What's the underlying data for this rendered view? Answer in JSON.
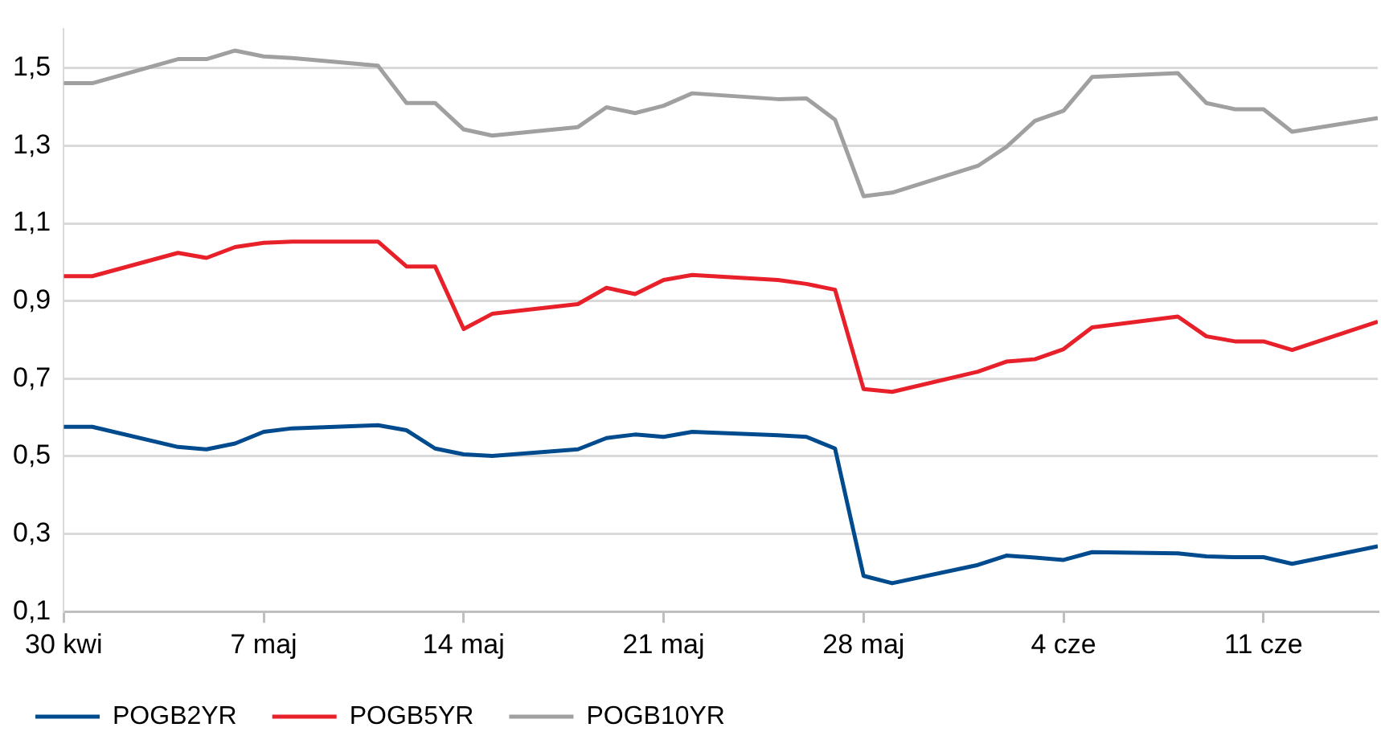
{
  "chart_data": {
    "type": "line",
    "x": [
      "--04-30",
      "--05-01",
      "--05-04",
      "--05-05",
      "--05-06",
      "--05-07",
      "--05-08",
      "--05-11",
      "--05-12",
      "--05-13",
      "--05-14",
      "--05-15",
      "--05-18",
      "--05-19",
      "--05-20",
      "--05-21",
      "--05-22",
      "--05-25",
      "--05-26",
      "--05-27",
      "--05-28",
      "--05-29",
      "--06-01",
      "--06-02",
      "--06-03",
      "--06-04",
      "--06-05",
      "--06-08",
      "--06-09",
      "--06-10",
      "--06-11",
      "--06-12",
      "--06-15"
    ],
    "series": [
      {
        "name": "POGB2YR",
        "color": "#004b8d",
        "values": [
          0.576,
          0.576,
          0.524,
          0.518,
          0.533,
          0.563,
          0.572,
          0.58,
          0.567,
          0.52,
          0.505,
          0.501,
          0.518,
          0.547,
          0.556,
          0.55,
          0.563,
          0.554,
          0.55,
          0.52,
          0.192,
          0.173,
          0.22,
          0.244,
          0.239,
          0.233,
          0.253,
          0.25,
          0.242,
          0.24,
          0.24,
          0.223,
          0.268
        ]
      },
      {
        "name": "POGB5YR",
        "color": "#e8202a",
        "values": [
          0.964,
          0.964,
          1.024,
          1.011,
          1.039,
          1.05,
          1.053,
          1.053,
          0.989,
          0.989,
          0.828,
          0.867,
          0.892,
          0.934,
          0.918,
          0.954,
          0.967,
          0.954,
          0.944,
          0.929,
          0.673,
          0.666,
          0.718,
          0.744,
          0.75,
          0.776,
          0.832,
          0.86,
          0.809,
          0.796,
          0.796,
          0.774,
          0.847
        ]
      },
      {
        "name": "POGB10YR",
        "color": "#a0a0a0",
        "values": [
          1.461,
          1.461,
          1.523,
          1.523,
          1.545,
          1.53,
          1.526,
          1.506,
          1.41,
          1.41,
          1.342,
          1.326,
          1.348,
          1.399,
          1.384,
          1.403,
          1.435,
          1.42,
          1.422,
          1.367,
          1.17,
          1.179,
          1.248,
          1.297,
          1.364,
          1.39,
          1.477,
          1.487,
          1.41,
          1.394,
          1.394,
          1.336,
          1.371
        ]
      }
    ],
    "xlim": [
      "--04-30",
      "--06-15"
    ],
    "xticks": [
      {
        "value": "--04-30",
        "label": "30 kwi"
      },
      {
        "value": "--05-07",
        "label": "7 maj"
      },
      {
        "value": "--05-14",
        "label": "14 maj"
      },
      {
        "value": "--05-21",
        "label": "21 maj"
      },
      {
        "value": "--05-28",
        "label": "28 maj"
      },
      {
        "value": "--06-04",
        "label": "4 cze"
      },
      {
        "value": "--06-11",
        "label": "11 cze"
      }
    ],
    "ylim": [
      0.1,
      1.6
    ],
    "yticks": [
      {
        "value": 0.1,
        "label": "0,1"
      },
      {
        "value": 0.3,
        "label": "0,3"
      },
      {
        "value": 0.5,
        "label": "0,5"
      },
      {
        "value": 0.7,
        "label": "0,7"
      },
      {
        "value": 0.9,
        "label": "0,9"
      },
      {
        "value": 1.1,
        "label": "1,1"
      },
      {
        "value": 1.3,
        "label": "1,3"
      },
      {
        "value": 1.5,
        "label": "1,5"
      }
    ],
    "grid": "y",
    "legend": "bottom left"
  }
}
